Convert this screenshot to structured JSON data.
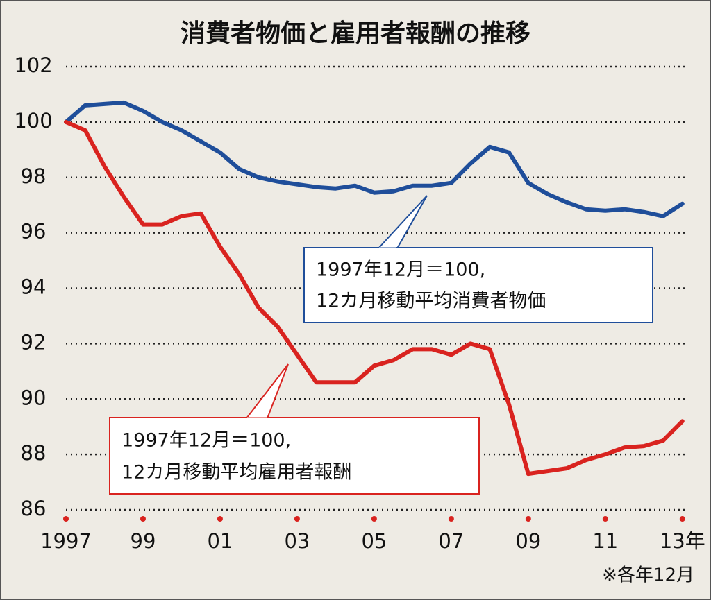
{
  "chart_data": {
    "type": "line",
    "title": "消費者物価と雇用者報酬の推移",
    "note": "※各年12月",
    "x": [
      1997,
      1997.5,
      1998,
      1998.5,
      1999,
      1999.5,
      2000,
      2000.5,
      2001,
      2001.5,
      2002,
      2002.5,
      2003,
      2003.5,
      2004,
      2004.5,
      2005,
      2005.5,
      2006,
      2006.5,
      2007,
      2007.5,
      2008,
      2008.5,
      2009,
      2009.5,
      2010,
      2010.5,
      2011,
      2011.5,
      2012,
      2012.5,
      2013
    ],
    "series": [
      {
        "name": "12カ月移動平均消費者物価",
        "base": "1997年12月＝100,",
        "color": "#1f4e9a",
        "values": [
          100,
          100.6,
          100.65,
          100.7,
          100.4,
          100.0,
          99.7,
          99.3,
          98.9,
          98.3,
          98.0,
          97.85,
          97.75,
          97.65,
          97.6,
          97.7,
          97.45,
          97.5,
          97.7,
          97.7,
          97.8,
          98.5,
          99.1,
          98.9,
          97.8,
          97.4,
          97.1,
          96.85,
          96.8,
          96.85,
          96.75,
          96.6,
          97.05
        ]
      },
      {
        "name": "12カ月移動平均雇用者報酬",
        "base": "1997年12月＝100,",
        "color": "#d9231f",
        "values": [
          100,
          99.7,
          98.4,
          97.3,
          96.3,
          96.3,
          96.6,
          96.7,
          95.5,
          94.5,
          93.3,
          92.6,
          91.6,
          90.6,
          90.6,
          90.6,
          91.2,
          91.4,
          91.8,
          91.8,
          91.6,
          92.0,
          91.8,
          89.8,
          87.3,
          87.4,
          87.5,
          87.8,
          88.0,
          88.25,
          88.3,
          88.5,
          89.2
        ]
      }
    ],
    "xlim": [
      1997,
      2013.13
    ],
    "xticks": [
      {
        "value": 1997,
        "label": "1997"
      },
      {
        "value": 1999,
        "label": "99"
      },
      {
        "value": 2001,
        "label": "01"
      },
      {
        "value": 2003,
        "label": "03"
      },
      {
        "value": 2005,
        "label": "05"
      },
      {
        "value": 2007,
        "label": "07"
      },
      {
        "value": 2009,
        "label": "09"
      },
      {
        "value": 2011,
        "label": "11"
      },
      {
        "value": 2013,
        "label": "13年"
      }
    ],
    "ylim": [
      86,
      102
    ],
    "yticks": [
      86,
      88,
      90,
      92,
      94,
      96,
      98,
      100,
      102
    ],
    "grid": true
  }
}
